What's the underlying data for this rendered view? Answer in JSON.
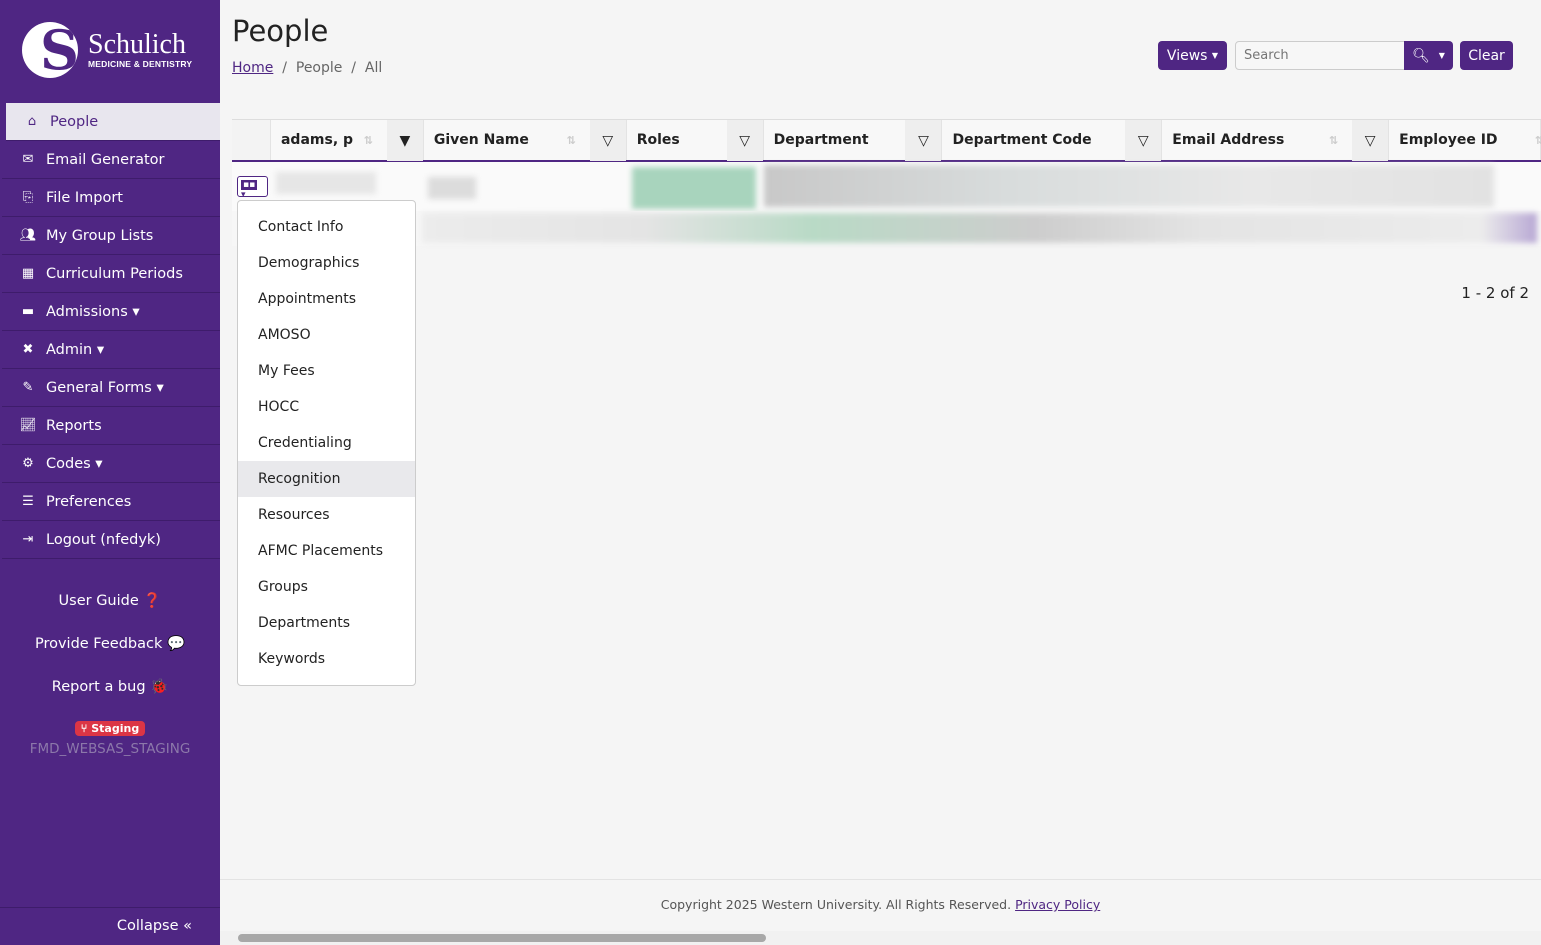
{
  "brand": {
    "name": "Schulich",
    "sub": "MEDICINE & DENTISTRY"
  },
  "sidebar": {
    "items": [
      {
        "label": "People",
        "icon": "home-user-icon",
        "active": true
      },
      {
        "label": "Email Generator",
        "icon": "envelope-icon"
      },
      {
        "label": "File Import",
        "icon": "file-import-icon"
      },
      {
        "label": "My Group Lists",
        "icon": "users-icon"
      },
      {
        "label": "Curriculum Periods",
        "icon": "calendar-icon"
      },
      {
        "label": "Admissions ▾",
        "icon": "id-card-icon"
      },
      {
        "label": "Admin ▾",
        "icon": "tools-icon"
      },
      {
        "label": "General Forms ▾",
        "icon": "form-icon"
      },
      {
        "label": "Reports",
        "icon": "chart-line-icon"
      },
      {
        "label": "Codes ▾",
        "icon": "cogs-icon"
      },
      {
        "label": "Preferences",
        "icon": "sliders-icon"
      },
      {
        "label": "Logout (nfedyk)",
        "icon": "sign-out-icon"
      }
    ],
    "user_guide": "User Guide",
    "feedback": "Provide Feedback",
    "bug": "Report a bug",
    "badge": "Staging",
    "env": "FMD_WEBSAS_STAGING",
    "collapse": "Collapse «"
  },
  "page": {
    "title": "People",
    "breadcrumb": [
      "Home",
      "People",
      "All"
    ]
  },
  "toolbar": {
    "views": "Views",
    "search_placeholder": "Search",
    "clear": "Clear"
  },
  "table": {
    "columns": [
      "adams, p",
      "Given Name",
      "Roles",
      "Department",
      "Department Code",
      "Email Address",
      "Employee ID"
    ]
  },
  "menu": {
    "items": [
      "Contact Info",
      "Demographics",
      "Appointments",
      "AMOSO",
      "My Fees",
      "HOCC",
      "Credentialing",
      "Recognition",
      "Resources",
      "AFMC Placements",
      "Groups",
      "Departments",
      "Keywords"
    ],
    "highlighted": "Recognition"
  },
  "pager": "1 - 2 of 2",
  "footer": {
    "text": "Copyright 2025 Western University. All Rights Reserved.",
    "link": "Privacy Policy"
  },
  "colors": {
    "primary": "#4f2683",
    "badge": "#dc3545"
  }
}
